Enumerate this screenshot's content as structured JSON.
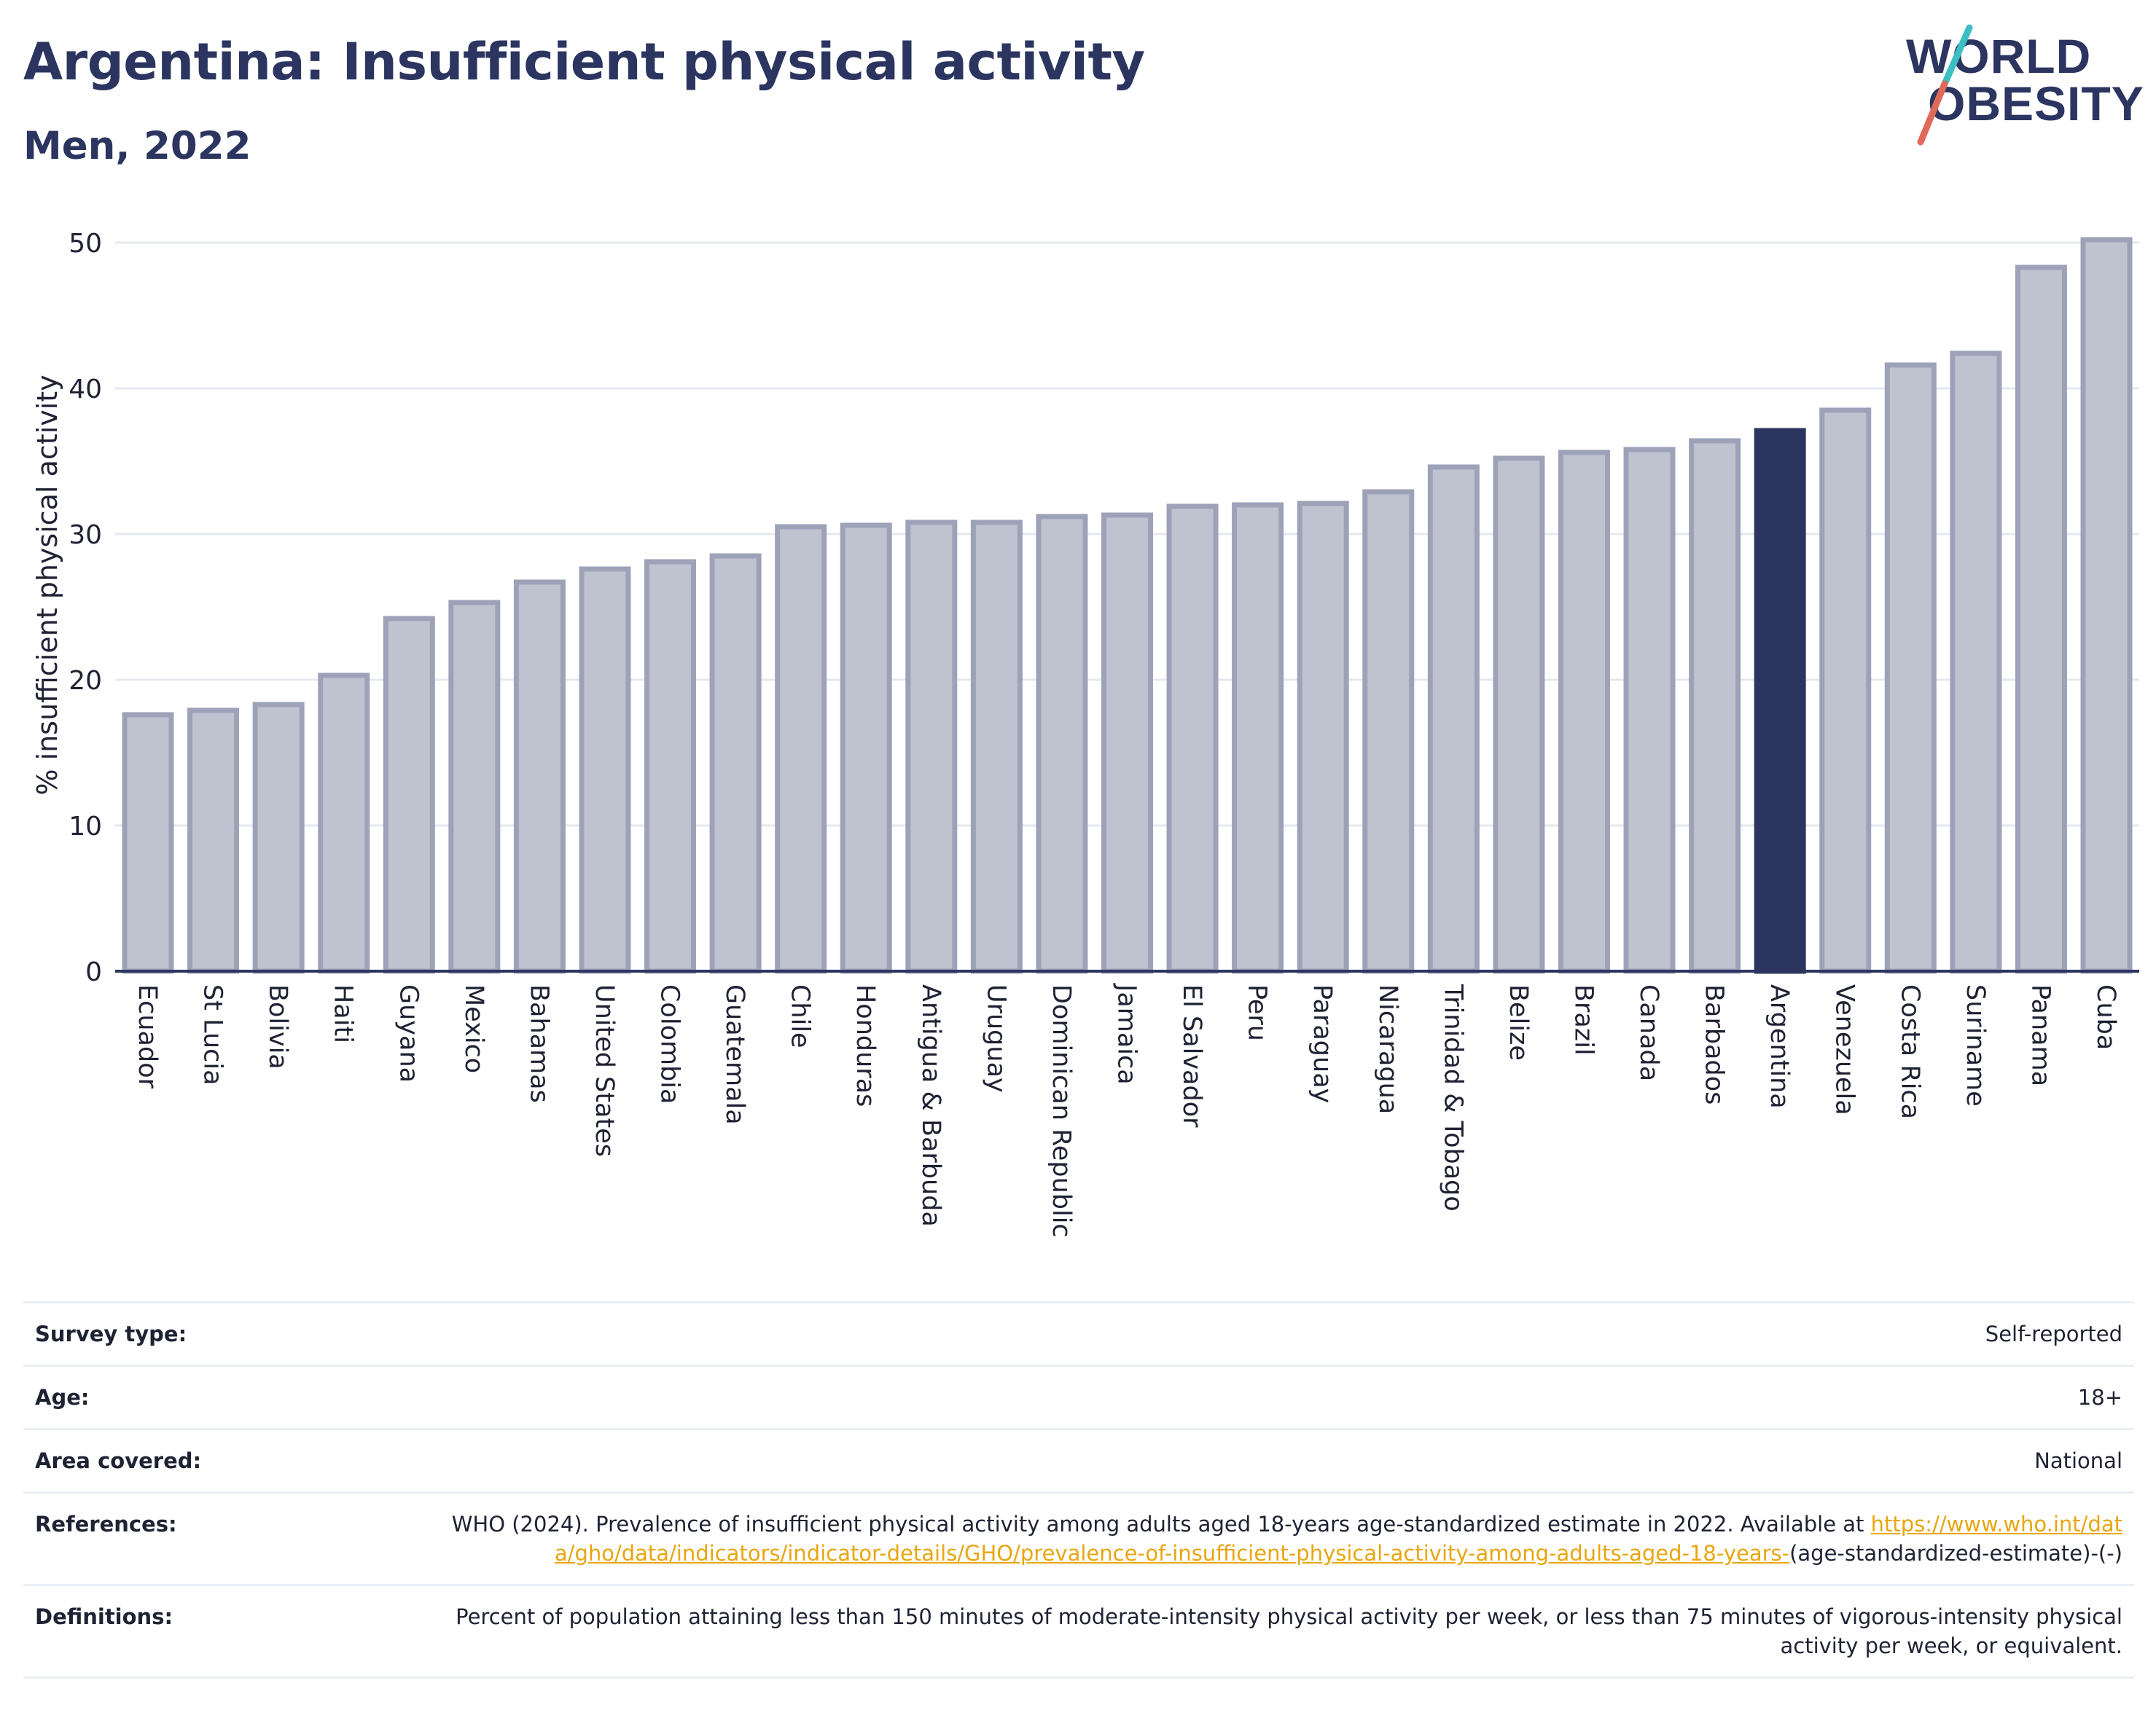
{
  "header": {
    "title": "Argentina: Insufficient physical activity",
    "subtitle": "Men, 2022"
  },
  "logo": {
    "line1": "WORLD",
    "line2": "OBESITY",
    "colors": {
      "text": "#2b3560",
      "slash_top": "#3bbfc3",
      "slash_bottom": "#e06a5a"
    }
  },
  "chart_data": {
    "type": "bar",
    "title": "",
    "xlabel": "",
    "ylabel": "% insufficient physical activity",
    "ylim": [
      0,
      52
    ],
    "yticks": [
      0,
      10,
      20,
      30,
      40,
      50
    ],
    "grid": true,
    "highlight": "Argentina",
    "colors": {
      "bar": "#bfc2cf",
      "bar_edge": "#9ea2b8",
      "highlight": "#2b3560",
      "axis": "#2b3560",
      "grid": "#e6e8ef"
    },
    "categories": [
      "Ecuador",
      "St Lucia",
      "Bolivia",
      "Haiti",
      "Guyana",
      "Mexico",
      "Bahamas",
      "United States",
      "Colombia",
      "Guatemala",
      "Chile",
      "Honduras",
      "Antigua & Barbuda",
      "Uruguay",
      "Dominican Republic",
      "Jamaica",
      "El Salvador",
      "Peru",
      "Paraguay",
      "Nicaragua",
      "Trinidad & Tobago",
      "Belize",
      "Brazil",
      "Canada",
      "Barbados",
      "Argentina",
      "Venezuela",
      "Costa Rica",
      "Suriname",
      "Panama",
      "Cuba"
    ],
    "values": [
      17.6,
      17.9,
      18.3,
      20.3,
      24.2,
      25.3,
      26.7,
      27.6,
      28.1,
      28.5,
      30.5,
      30.6,
      30.8,
      30.8,
      31.2,
      31.3,
      31.9,
      32.0,
      32.1,
      32.9,
      34.6,
      35.2,
      35.6,
      35.8,
      36.4,
      37.1,
      38.5,
      41.6,
      42.4,
      48.3,
      50.2
    ]
  },
  "info": {
    "rows": [
      {
        "label": "Survey type:",
        "value": "Self-reported"
      },
      {
        "label": "Age:",
        "value": "18+"
      },
      {
        "label": "Area covered:",
        "value": "National"
      }
    ],
    "references": {
      "label": "References:",
      "text_before": "WHO (2024). Prevalence of insufficient physical activity among adults aged 18-years age-standardized estimate in 2022. Available at ",
      "link": "https://www.who.int/data/gho/data/indicators/indicator-details/GHO/prevalence-of-insufficient-physical-activity-among-adults-aged-18-years-",
      "text_after": "(age-standardized-estimate)-(-)"
    },
    "definitions": {
      "label": "Definitions:",
      "value": "Percent of population attaining less than 150 minutes of moderate-intensity physical activity per week, or less than 75 minutes of vigorous-intensity physical activity per week, or equivalent."
    }
  }
}
